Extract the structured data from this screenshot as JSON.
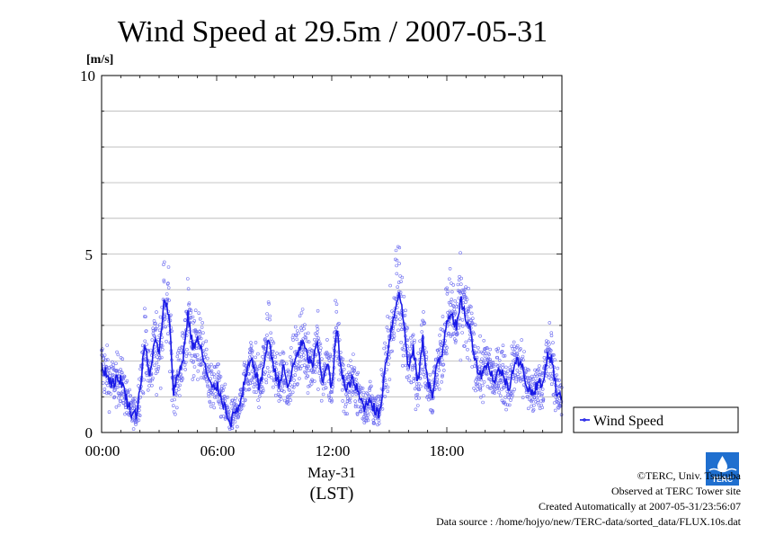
{
  "chart_data": {
    "type": "line",
    "title": "Wind Speed at 29.5m / 2007-05-31",
    "ylabel": "[m/s]",
    "xlabel_date": "May-31",
    "xlabel_unit": "(LST)",
    "ylim": [
      0,
      10
    ],
    "xlim_hours": [
      0,
      24
    ],
    "y_ticks": [
      "0",
      "5",
      "10"
    ],
    "x_ticks": [
      "00:00",
      "06:00",
      "12:00",
      "18:00"
    ],
    "grid": true,
    "legend_position": "right",
    "series": [
      {
        "name": "Wind Speed",
        "color": "#1a1ae6",
        "x": [
          0.0,
          0.5,
          1.0,
          1.5,
          1.8,
          2.0,
          2.25,
          2.5,
          2.75,
          3.0,
          3.25,
          3.5,
          3.75,
          4.0,
          4.25,
          4.5,
          4.75,
          5.0,
          5.25,
          5.5,
          5.75,
          6.0,
          6.25,
          6.5,
          6.75,
          7.0,
          7.25,
          7.5,
          7.75,
          8.0,
          8.25,
          8.5,
          8.75,
          9.0,
          9.25,
          9.5,
          9.75,
          10.0,
          10.25,
          10.5,
          10.75,
          11.0,
          11.25,
          11.5,
          11.75,
          12.0,
          12.25,
          12.5,
          12.75,
          13.0,
          13.25,
          13.5,
          13.75,
          14.0,
          14.25,
          14.5,
          14.75,
          15.0,
          15.25,
          15.5,
          15.75,
          16.0,
          16.25,
          16.5,
          16.75,
          17.0,
          17.25,
          17.5,
          17.75,
          18.0,
          18.25,
          18.5,
          18.75,
          19.0,
          19.25,
          19.5,
          19.75,
          20.0,
          20.25,
          20.5,
          20.75,
          21.0,
          21.25,
          21.5,
          21.75,
          22.0,
          22.25,
          22.5,
          22.75,
          23.0,
          23.25,
          23.5,
          23.75
        ],
        "values": [
          1.9,
          1.4,
          1.5,
          0.6,
          0.5,
          1.2,
          2.5,
          1.5,
          2.6,
          2.2,
          3.6,
          3.4,
          1.2,
          1.6,
          2.1,
          3.3,
          2.4,
          2.6,
          2.2,
          1.6,
          1.2,
          1.3,
          1.0,
          0.6,
          0.3,
          0.6,
          0.8,
          1.5,
          2.0,
          1.8,
          1.2,
          2.1,
          2.6,
          1.7,
          1.4,
          1.8,
          1.2,
          1.9,
          2.3,
          2.5,
          2.1,
          1.9,
          2.5,
          1.4,
          2.0,
          1.2,
          2.9,
          1.8,
          1.1,
          1.5,
          1.3,
          0.9,
          0.7,
          1.0,
          0.6,
          0.5,
          1.7,
          2.6,
          3.3,
          4.0,
          3.1,
          1.8,
          2.3,
          1.4,
          2.6,
          1.5,
          1.0,
          1.9,
          2.2,
          3.2,
          3.4,
          2.9,
          3.7,
          3.2,
          2.8,
          2.0,
          1.6,
          1.9,
          1.8,
          1.4,
          1.8,
          1.5,
          1.3,
          1.9,
          2.0,
          1.7,
          1.2,
          1.1,
          1.4,
          1.3,
          2.2,
          2.0,
          1.0
        ]
      }
    ]
  },
  "footer": {
    "copyright": "©TERC, Univ. Tsukuba",
    "observed": "Observed at TERC Tower site",
    "created": "Created Automatically at 2007-05-31/23:56:07",
    "source": "Data source : /home/hojyo/new/TERC-data/sorted_data/FLUX.10s.dat"
  },
  "logo": {
    "name": "terc-logo",
    "text": "TERC",
    "color": "#1f6fcf"
  }
}
